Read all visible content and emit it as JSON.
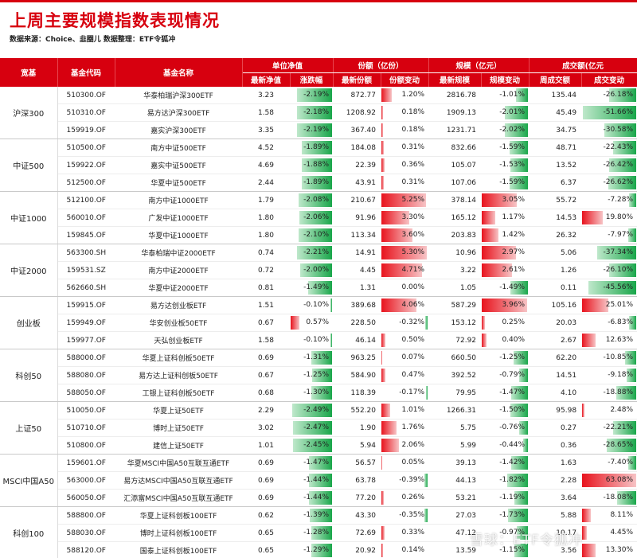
{
  "title": "上周主要规模指数表现情况",
  "source": "数据来源：Choice、韭圈儿    数据整理：ETF令狐冲",
  "header": {
    "index": "宽基",
    "code": "基金代码",
    "name": "基金名称",
    "groups": [
      "单位净值",
      "份额（亿份）",
      "规模（亿元）",
      "成交额(亿元"
    ],
    "sub": [
      "最新净值",
      "涨跌幅",
      "最新份额",
      "份额变动",
      "最新规模",
      "规模变动",
      "周成交额",
      "成交变动"
    ]
  },
  "colors": {
    "accent": "#d7000f",
    "up": "#e8131d",
    "down": "#19a64a"
  },
  "groups": [
    {
      "index": "沪深300",
      "rows": [
        {
          "code": "510300.OF",
          "name": "华泰柏瑞沪深300ETF",
          "nav": "3.23",
          "chg": "-2.19%",
          "chg_v": -2.19,
          "shares": "872.77",
          "share_chg": "1.20%",
          "share_chg_v": 1.2,
          "aum": "2816.78",
          "aum_chg": "-1.01%",
          "aum_chg_v": -1.01,
          "turnover": "135.44",
          "turn_chg": "-26.18%",
          "turn_chg_v": -26.18
        },
        {
          "code": "510310.OF",
          "name": "易方达沪深300ETF",
          "nav": "1.58",
          "chg": "-2.18%",
          "chg_v": -2.18,
          "shares": "1208.92",
          "share_chg": "0.18%",
          "share_chg_v": 0.18,
          "aum": "1909.13",
          "aum_chg": "-2.01%",
          "aum_chg_v": -2.01,
          "turnover": "45.49",
          "turn_chg": "-51.66%",
          "turn_chg_v": -51.66
        },
        {
          "code": "159919.OF",
          "name": "嘉实沪深300ETF",
          "nav": "3.35",
          "chg": "-2.19%",
          "chg_v": -2.19,
          "shares": "367.40",
          "share_chg": "0.18%",
          "share_chg_v": 0.18,
          "aum": "1231.71",
          "aum_chg": "-2.02%",
          "aum_chg_v": -2.02,
          "turnover": "34.75",
          "turn_chg": "-30.58%",
          "turn_chg_v": -30.58
        }
      ]
    },
    {
      "index": "中证500",
      "rows": [
        {
          "code": "510500.OF",
          "name": "南方中证500ETF",
          "nav": "4.52",
          "chg": "-1.89%",
          "chg_v": -1.89,
          "shares": "184.08",
          "share_chg": "0.31%",
          "share_chg_v": 0.31,
          "aum": "832.66",
          "aum_chg": "-1.59%",
          "aum_chg_v": -1.59,
          "turnover": "48.71",
          "turn_chg": "-22.43%",
          "turn_chg_v": -22.43
        },
        {
          "code": "159922.OF",
          "name": "嘉实中证500ETF",
          "nav": "4.69",
          "chg": "-1.88%",
          "chg_v": -1.88,
          "shares": "22.39",
          "share_chg": "0.36%",
          "share_chg_v": 0.36,
          "aum": "105.07",
          "aum_chg": "-1.53%",
          "aum_chg_v": -1.53,
          "turnover": "13.52",
          "turn_chg": "-26.42%",
          "turn_chg_v": -26.42
        },
        {
          "code": "512500.OF",
          "name": "华夏中证500ETF",
          "nav": "2.44",
          "chg": "-1.89%",
          "chg_v": -1.89,
          "shares": "43.91",
          "share_chg": "0.31%",
          "share_chg_v": 0.31,
          "aum": "107.06",
          "aum_chg": "-1.59%",
          "aum_chg_v": -1.59,
          "turnover": "6.37",
          "turn_chg": "-26.62%",
          "turn_chg_v": -26.62
        }
      ]
    },
    {
      "index": "中证1000",
      "rows": [
        {
          "code": "512100.OF",
          "name": "南方中证1000ETF",
          "nav": "1.79",
          "chg": "-2.08%",
          "chg_v": -2.08,
          "shares": "210.67",
          "share_chg": "5.25%",
          "share_chg_v": 5.25,
          "aum": "378.14",
          "aum_chg": "3.05%",
          "aum_chg_v": 3.05,
          "turnover": "55.72",
          "turn_chg": "-7.28%",
          "turn_chg_v": -7.28
        },
        {
          "code": "560010.OF",
          "name": "广发中证1000ETF",
          "nav": "1.80",
          "chg": "-2.06%",
          "chg_v": -2.06,
          "shares": "91.96",
          "share_chg": "3.30%",
          "share_chg_v": 3.3,
          "aum": "165.12",
          "aum_chg": "1.17%",
          "aum_chg_v": 1.17,
          "turnover": "14.53",
          "turn_chg": "19.80%",
          "turn_chg_v": 19.8
        },
        {
          "code": "159845.OF",
          "name": "华夏中证1000ETF",
          "nav": "1.80",
          "chg": "-2.10%",
          "chg_v": -2.1,
          "shares": "113.34",
          "share_chg": "3.60%",
          "share_chg_v": 3.6,
          "aum": "203.83",
          "aum_chg": "1.42%",
          "aum_chg_v": 1.42,
          "turnover": "26.32",
          "turn_chg": "-7.97%",
          "turn_chg_v": -7.97
        }
      ]
    },
    {
      "index": "中证2000",
      "rows": [
        {
          "code": "563300.SH",
          "name": "华泰柏瑞中证2000ETF",
          "nav": "0.74",
          "chg": "-2.21%",
          "chg_v": -2.21,
          "shares": "14.91",
          "share_chg": "5.30%",
          "share_chg_v": 5.3,
          "aum": "10.96",
          "aum_chg": "2.97%",
          "aum_chg_v": 2.97,
          "turnover": "5.06",
          "turn_chg": "-37.34%",
          "turn_chg_v": -37.34
        },
        {
          "code": "159531.SZ",
          "name": "南方中证2000ETF",
          "nav": "0.72",
          "chg": "-2.00%",
          "chg_v": -2.0,
          "shares": "4.45",
          "share_chg": "4.71%",
          "share_chg_v": 4.71,
          "aum": "3.22",
          "aum_chg": "2.61%",
          "aum_chg_v": 2.61,
          "turnover": "1.26",
          "turn_chg": "-26.10%",
          "turn_chg_v": -26.1
        },
        {
          "code": "562660.SH",
          "name": "华夏中证2000ETF",
          "nav": "0.81",
          "chg": "-1.49%",
          "chg_v": -1.49,
          "shares": "1.31",
          "share_chg": "0.00%",
          "share_chg_v": 0.0,
          "aum": "1.05",
          "aum_chg": "-1.49%",
          "aum_chg_v": -1.49,
          "turnover": "0.11",
          "turn_chg": "-45.56%",
          "turn_chg_v": -45.56
        }
      ]
    },
    {
      "index": "创业板",
      "rows": [
        {
          "code": "159915.OF",
          "name": "易方达创业板ETF",
          "nav": "1.51",
          "chg": "-0.10%",
          "chg_v": -0.1,
          "shares": "389.68",
          "share_chg": "4.06%",
          "share_chg_v": 4.06,
          "aum": "587.29",
          "aum_chg": "3.96%",
          "aum_chg_v": 3.96,
          "turnover": "105.16",
          "turn_chg": "25.01%",
          "turn_chg_v": 25.01
        },
        {
          "code": "159949.OF",
          "name": "华安创业板50ETF",
          "nav": "0.67",
          "chg": "0.57%",
          "chg_v": 0.57,
          "shares": "228.50",
          "share_chg": "-0.32%",
          "share_chg_v": -0.32,
          "aum": "153.12",
          "aum_chg": "0.25%",
          "aum_chg_v": 0.25,
          "turnover": "20.03",
          "turn_chg": "-6.83%",
          "turn_chg_v": -6.83
        },
        {
          "code": "159977.OF",
          "name": "天弘创业板ETF",
          "nav": "1.58",
          "chg": "-0.10%",
          "chg_v": -0.1,
          "shares": "46.14",
          "share_chg": "0.50%",
          "share_chg_v": 0.5,
          "aum": "72.92",
          "aum_chg": "0.40%",
          "aum_chg_v": 0.4,
          "turnover": "2.67",
          "turn_chg": "12.63%",
          "turn_chg_v": 12.63
        }
      ]
    },
    {
      "index": "科创50",
      "rows": [
        {
          "code": "588000.OF",
          "name": "华夏上证科创板50ETF",
          "nav": "0.69",
          "chg": "-1.31%",
          "chg_v": -1.31,
          "shares": "963.25",
          "share_chg": "0.07%",
          "share_chg_v": 0.07,
          "aum": "660.50",
          "aum_chg": "-1.25%",
          "aum_chg_v": -1.25,
          "turnover": "62.20",
          "turn_chg": "-10.85%",
          "turn_chg_v": -10.85
        },
        {
          "code": "588080.OF",
          "name": "易方达上证科创板50ETF",
          "nav": "0.67",
          "chg": "-1.25%",
          "chg_v": -1.25,
          "shares": "584.90",
          "share_chg": "0.47%",
          "share_chg_v": 0.47,
          "aum": "392.52",
          "aum_chg": "-0.79%",
          "aum_chg_v": -0.79,
          "turnover": "14.51",
          "turn_chg": "-9.18%",
          "turn_chg_v": -9.18
        },
        {
          "code": "588050.OF",
          "name": "工银上证科创板50ETF",
          "nav": "0.68",
          "chg": "-1.30%",
          "chg_v": -1.3,
          "shares": "118.39",
          "share_chg": "-0.17%",
          "share_chg_v": -0.17,
          "aum": "79.95",
          "aum_chg": "-1.47%",
          "aum_chg_v": -1.47,
          "turnover": "4.10",
          "turn_chg": "-18.88%",
          "turn_chg_v": -18.88
        }
      ]
    },
    {
      "index": "上证50",
      "rows": [
        {
          "code": "510050.OF",
          "name": "华夏上证50ETF",
          "nav": "2.29",
          "chg": "-2.49%",
          "chg_v": -2.49,
          "shares": "552.20",
          "share_chg": "1.01%",
          "share_chg_v": 1.01,
          "aum": "1266.31",
          "aum_chg": "-1.50%",
          "aum_chg_v": -1.5,
          "turnover": "95.98",
          "turn_chg": "2.48%",
          "turn_chg_v": 2.48
        },
        {
          "code": "510710.OF",
          "name": "博时上证50ETF",
          "nav": "3.02",
          "chg": "-2.47%",
          "chg_v": -2.47,
          "shares": "1.90",
          "share_chg": "1.76%",
          "share_chg_v": 1.76,
          "aum": "5.75",
          "aum_chg": "-0.76%",
          "aum_chg_v": -0.76,
          "turnover": "0.27",
          "turn_chg": "-22.21%",
          "turn_chg_v": -22.21
        },
        {
          "code": "510800.OF",
          "name": "建信上证50ETF",
          "nav": "1.01",
          "chg": "-2.45%",
          "chg_v": -2.45,
          "shares": "5.94",
          "share_chg": "2.06%",
          "share_chg_v": 2.06,
          "aum": "5.99",
          "aum_chg": "-0.44%",
          "aum_chg_v": -0.44,
          "turnover": "0.36",
          "turn_chg": "-28.65%",
          "turn_chg_v": -28.65
        }
      ]
    },
    {
      "index": "MSCI中国A50",
      "rows": [
        {
          "code": "159601.OF",
          "name": "华夏MSCI中国A50互联互通ETF",
          "nav": "0.69",
          "chg": "-1.47%",
          "chg_v": -1.47,
          "shares": "56.57",
          "share_chg": "0.05%",
          "share_chg_v": 0.05,
          "aum": "39.13",
          "aum_chg": "-1.42%",
          "aum_chg_v": -1.42,
          "turnover": "1.63",
          "turn_chg": "-7.40%",
          "turn_chg_v": -7.4
        },
        {
          "code": "563000.OF",
          "name": "易方达MSCI中国A50互联互通ETF",
          "nav": "0.69",
          "chg": "-1.44%",
          "chg_v": -1.44,
          "shares": "63.78",
          "share_chg": "-0.39%",
          "share_chg_v": -0.39,
          "aum": "44.13",
          "aum_chg": "-1.82%",
          "aum_chg_v": -1.82,
          "turnover": "2.28",
          "turn_chg": "63.08%",
          "turn_chg_v": 63.08
        },
        {
          "code": "560050.OF",
          "name": "汇添富MSCI中国A50互联互通ETF",
          "nav": "0.69",
          "chg": "-1.44%",
          "chg_v": -1.44,
          "shares": "77.20",
          "share_chg": "0.26%",
          "share_chg_v": 0.26,
          "aum": "53.21",
          "aum_chg": "-1.19%",
          "aum_chg_v": -1.19,
          "turnover": "3.64",
          "turn_chg": "-18.08%",
          "turn_chg_v": -18.08
        }
      ]
    },
    {
      "index": "科创100",
      "rows": [
        {
          "code": "588800.OF",
          "name": "华夏上证科创板100ETF",
          "nav": "0.62",
          "chg": "-1.39%",
          "chg_v": -1.39,
          "shares": "43.30",
          "share_chg": "-0.35%",
          "share_chg_v": -0.35,
          "aum": "27.03",
          "aum_chg": "-1.73%",
          "aum_chg_v": -1.73,
          "turnover": "5.88",
          "turn_chg": "8.11%",
          "turn_chg_v": 8.11
        },
        {
          "code": "588030.OF",
          "name": "博时上证科创板100ETF",
          "nav": "0.65",
          "chg": "-1.28%",
          "chg_v": -1.28,
          "shares": "72.69",
          "share_chg": "0.33%",
          "share_chg_v": 0.33,
          "aum": "47.12",
          "aum_chg": "-0.97%",
          "aum_chg_v": -0.97,
          "turnover": "10.17",
          "turn_chg": "4.45%",
          "turn_chg_v": 4.45
        },
        {
          "code": "588120.OF",
          "name": "国泰上证科创板100ETF",
          "nav": "0.65",
          "chg": "-1.29%",
          "chg_v": -1.29,
          "shares": "20.92",
          "share_chg": "0.14%",
          "share_chg_v": 0.14,
          "aum": "13.59",
          "aum_chg": "-1.15%",
          "aum_chg_v": -1.15,
          "turnover": "3.56",
          "turn_chg": "13.30%",
          "turn_chg_v": 13.3
        }
      ]
    }
  ],
  "watermark": "雪球：ETF令狐冲"
}
